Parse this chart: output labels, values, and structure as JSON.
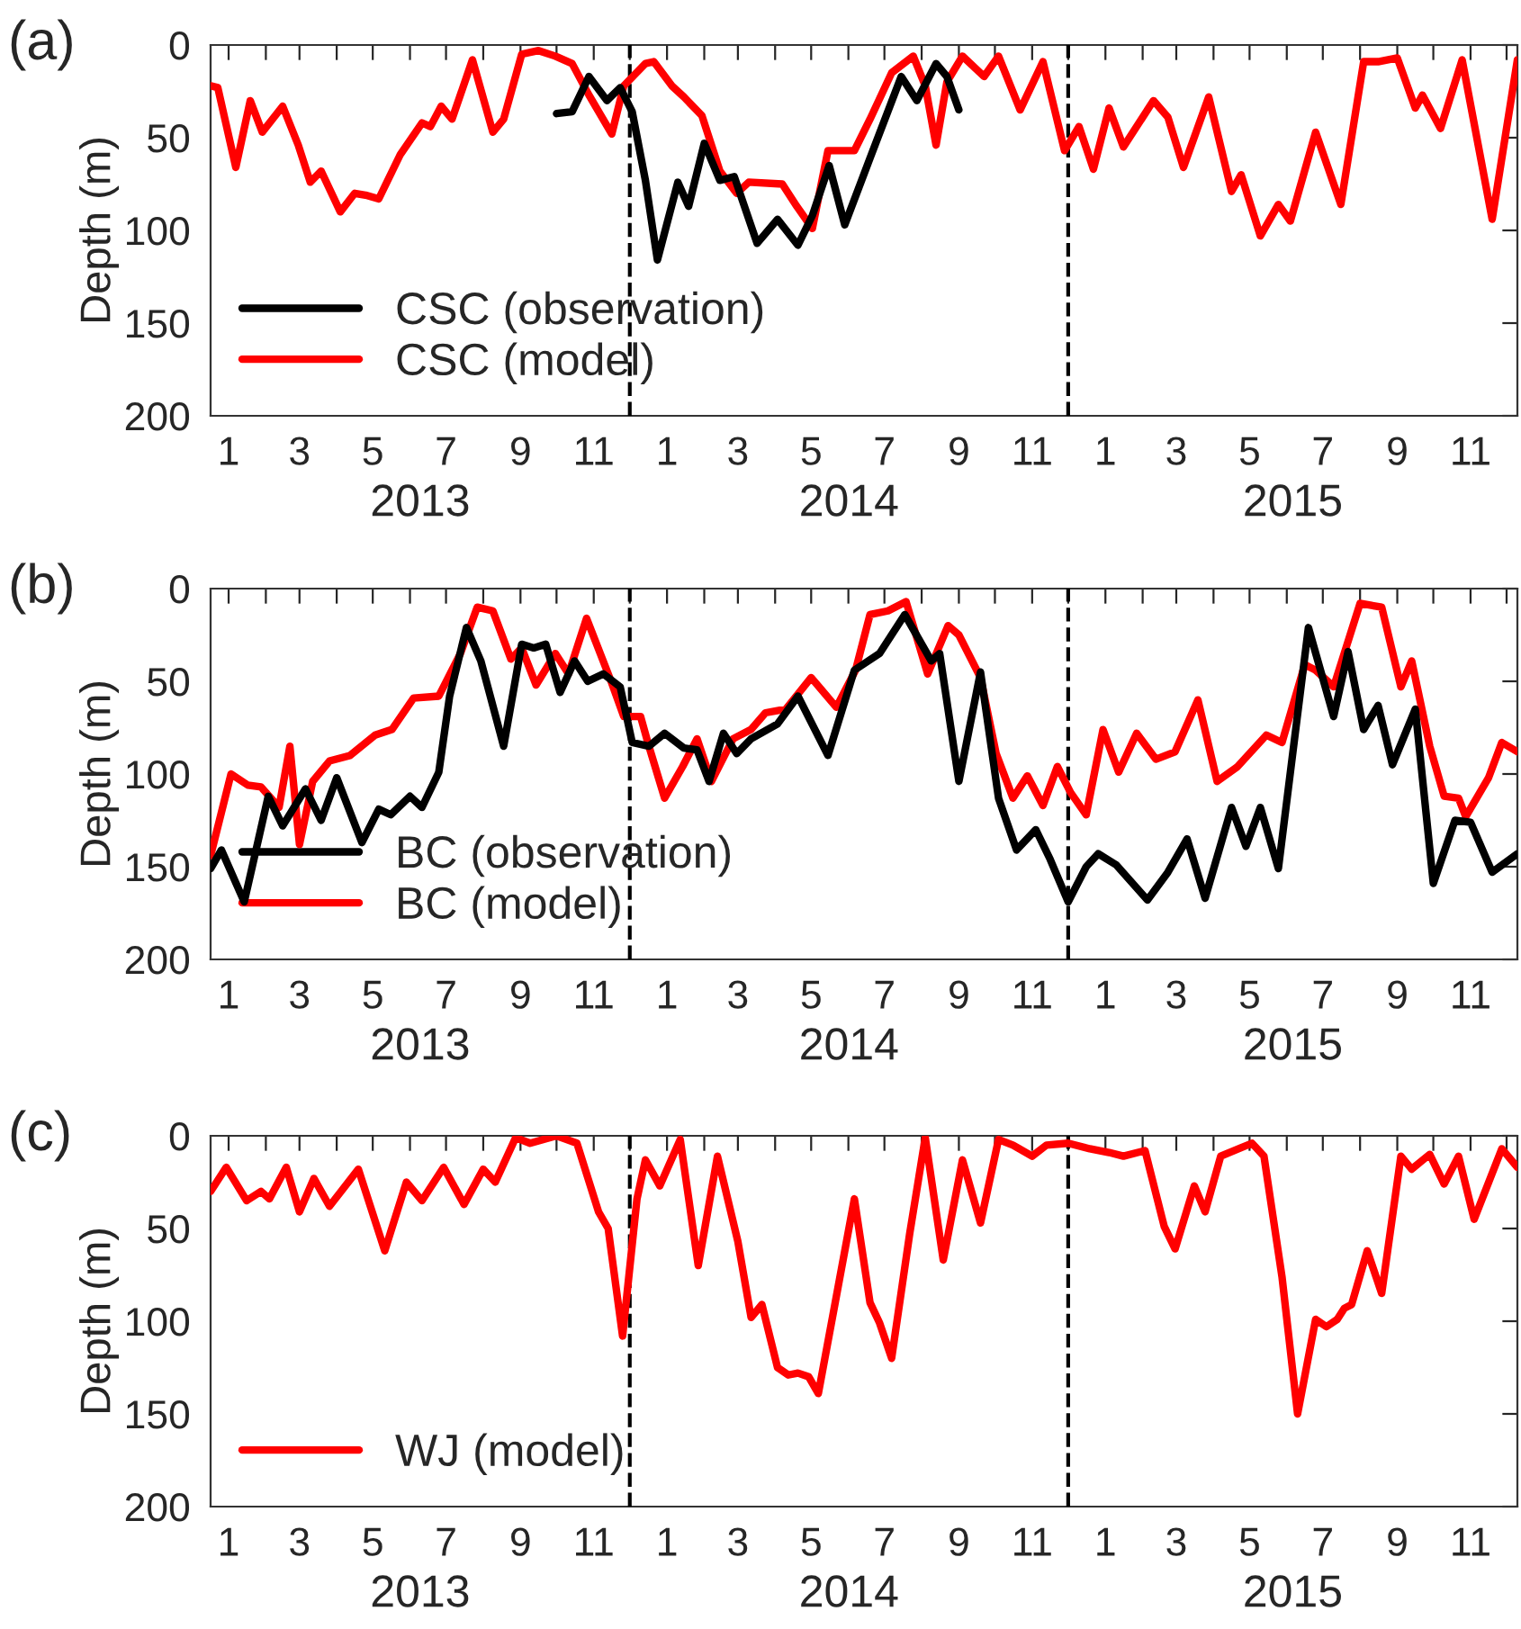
{
  "chart_data": [
    {
      "type": "line",
      "title": "(a)",
      "ylabel": "Depth (m)",
      "xlim": [
        "2012-12-17",
        "2015-12-10"
      ],
      "ylim": [
        200,
        0
      ],
      "yticks": [
        0,
        50,
        100,
        150,
        200
      ],
      "xticks": [
        {
          "value": "2013-01",
          "label": "1"
        },
        {
          "value": "2013-02",
          "label": null
        },
        {
          "value": "2013-03",
          "label": "3"
        },
        {
          "value": "2013-04",
          "label": null
        },
        {
          "value": "2013-05",
          "label": "5"
        },
        {
          "value": "2013-06",
          "label": null
        },
        {
          "value": "2013-07",
          "label": "7"
        },
        {
          "value": "2013-08",
          "label": null
        },
        {
          "value": "2013-09",
          "label": "9"
        },
        {
          "value": "2013-10",
          "label": null
        },
        {
          "value": "2013-11",
          "label": "11"
        },
        {
          "value": "2013-12",
          "label": null
        },
        {
          "value": "2014-01",
          "label": "1"
        },
        {
          "value": "2014-02",
          "label": null
        },
        {
          "value": "2014-03",
          "label": "3"
        },
        {
          "value": "2014-04",
          "label": null
        },
        {
          "value": "2014-05",
          "label": "5"
        },
        {
          "value": "2014-06",
          "label": null
        },
        {
          "value": "2014-07",
          "label": "7"
        },
        {
          "value": "2014-08",
          "label": null
        },
        {
          "value": "2014-09",
          "label": "9"
        },
        {
          "value": "2014-10",
          "label": null
        },
        {
          "value": "2014-11",
          "label": "11"
        },
        {
          "value": "2014-12",
          "label": null
        },
        {
          "value": "2015-01",
          "label": "1"
        },
        {
          "value": "2015-02",
          "label": null
        },
        {
          "value": "2015-03",
          "label": "3"
        },
        {
          "value": "2015-04",
          "label": null
        },
        {
          "value": "2015-05",
          "label": "5"
        },
        {
          "value": "2015-06",
          "label": null
        },
        {
          "value": "2015-07",
          "label": "7"
        },
        {
          "value": "2015-08",
          "label": null
        },
        {
          "value": "2015-09",
          "label": "9"
        },
        {
          "value": "2015-10",
          "label": null
        },
        {
          "value": "2015-11",
          "label": "11"
        },
        {
          "value": "2015-12",
          "label": null
        }
      ],
      "annotations": [
        "2013",
        "2014",
        "2015"
      ],
      "ref_lines": [
        {
          "axis": "x",
          "value": "2013-12-01",
          "line_style": "dashed",
          "color": "#000000"
        },
        {
          "axis": "x",
          "value": "2014-12-01",
          "line_style": "dashed",
          "color": "#000000"
        }
      ],
      "legend": "bottom left",
      "grid": false,
      "line_style": "solid",
      "marker": "none",
      "series": [
        {
          "name": "CSC (observation)",
          "color": "#000000",
          "x": [
            "2013-10-01",
            "2013-10-14",
            "2013-10-28",
            "2013-11-12",
            "2013-11-23",
            "2013-12-03",
            "2013-12-14",
            "2013-12-24",
            "2014-01-10",
            "2014-01-19",
            "2014-02-01",
            "2014-02-14",
            "2014-02-26",
            "2014-03-17",
            "2014-04-03",
            "2014-04-20",
            "2014-05-02",
            "2014-05-16",
            "2014-05-29",
            "2014-06-19",
            "2014-07-15",
            "2014-07-28",
            "2014-08-13",
            "2014-08-22",
            "2014-09-01"
          ],
          "values": [
            37,
            36,
            17,
            30,
            23,
            36,
            73,
            116,
            74,
            87,
            53,
            73,
            71,
            107,
            94,
            108,
            92,
            65,
            97,
            61,
            17,
            30,
            10,
            17,
            35
          ]
        },
        {
          "name": "CSC (model)",
          "color": "#ff0000",
          "x": [
            "2012-12-17",
            "2012-12-23",
            "2013-01-07",
            "2013-01-19",
            "2013-01-29",
            "2013-02-15",
            "2013-02-28",
            "2013-03-10",
            "2013-03-19",
            "2013-04-04",
            "2013-04-16",
            "2013-04-25",
            "2013-05-06",
            "2013-05-24",
            "2013-06-11",
            "2013-06-18",
            "2013-06-27",
            "2013-07-06",
            "2013-07-23",
            "2013-08-09",
            "2013-08-18",
            "2013-09-02",
            "2013-09-16",
            "2013-09-30",
            "2013-10-14",
            "2013-10-28",
            "2013-11-16",
            "2013-11-26",
            "2013-12-14",
            "2013-12-21",
            "2014-01-05",
            "2014-01-15",
            "2014-01-30",
            "2014-02-14",
            "2014-02-28",
            "2014-03-10",
            "2014-04-07",
            "2014-04-19",
            "2014-05-02",
            "2014-05-15",
            "2014-06-06",
            "2014-06-19",
            "2014-07-07",
            "2014-07-25",
            "2014-08-04",
            "2014-08-13",
            "2014-08-22",
            "2014-09-04",
            "2014-09-22",
            "2014-10-04",
            "2014-10-22",
            "2014-11-10",
            "2014-11-28",
            "2014-12-10",
            "2014-12-22",
            "2015-01-04",
            "2015-01-16",
            "2015-02-10",
            "2015-02-22",
            "2015-03-07",
            "2015-03-28",
            "2015-04-16",
            "2015-04-24",
            "2015-05-10",
            "2015-05-25",
            "2015-06-04",
            "2015-06-25",
            "2015-07-16",
            "2015-08-04",
            "2015-08-16",
            "2015-09-01",
            "2015-09-16",
            "2015-09-22",
            "2015-10-07",
            "2015-10-25",
            "2015-11-19",
            "2015-12-10"
          ],
          "values": [
            22,
            23,
            66,
            30,
            47,
            33,
            54,
            74,
            68,
            90,
            80,
            81,
            83,
            59,
            42,
            44,
            33,
            40,
            8,
            47,
            40,
            5,
            3,
            6,
            10,
            27,
            48,
            22,
            10,
            9,
            22,
            28,
            38,
            68,
            80,
            74,
            75,
            87,
            99,
            57,
            57,
            40,
            15,
            6,
            22,
            54,
            20,
            6,
            17,
            6,
            35,
            9,
            57,
            44,
            67,
            34,
            55,
            30,
            39,
            66,
            28,
            79,
            70,
            103,
            86,
            95,
            47,
            86,
            9,
            9,
            7,
            34,
            27,
            45,
            8,
            94,
            8
          ]
        }
      ]
    },
    {
      "type": "line",
      "title": "(b)",
      "ylabel": "Depth (m)",
      "xlim": [
        "2012-12-17",
        "2015-12-10"
      ],
      "ylim": [
        200,
        0
      ],
      "yticks": [
        0,
        50,
        100,
        150,
        200
      ],
      "xticks": [
        {
          "value": "2013-01",
          "label": "1"
        },
        {
          "value": "2013-02",
          "label": null
        },
        {
          "value": "2013-03",
          "label": "3"
        },
        {
          "value": "2013-04",
          "label": null
        },
        {
          "value": "2013-05",
          "label": "5"
        },
        {
          "value": "2013-06",
          "label": null
        },
        {
          "value": "2013-07",
          "label": "7"
        },
        {
          "value": "2013-08",
          "label": null
        },
        {
          "value": "2013-09",
          "label": "9"
        },
        {
          "value": "2013-10",
          "label": null
        },
        {
          "value": "2013-11",
          "label": "11"
        },
        {
          "value": "2013-12",
          "label": null
        },
        {
          "value": "2014-01",
          "label": "1"
        },
        {
          "value": "2014-02",
          "label": null
        },
        {
          "value": "2014-03",
          "label": "3"
        },
        {
          "value": "2014-04",
          "label": null
        },
        {
          "value": "2014-05",
          "label": "5"
        },
        {
          "value": "2014-06",
          "label": null
        },
        {
          "value": "2014-07",
          "label": "7"
        },
        {
          "value": "2014-08",
          "label": null
        },
        {
          "value": "2014-09",
          "label": "9"
        },
        {
          "value": "2014-10",
          "label": null
        },
        {
          "value": "2014-11",
          "label": "11"
        },
        {
          "value": "2014-12",
          "label": null
        },
        {
          "value": "2015-01",
          "label": "1"
        },
        {
          "value": "2015-02",
          "label": null
        },
        {
          "value": "2015-03",
          "label": "3"
        },
        {
          "value": "2015-04",
          "label": null
        },
        {
          "value": "2015-05",
          "label": "5"
        },
        {
          "value": "2015-06",
          "label": null
        },
        {
          "value": "2015-07",
          "label": "7"
        },
        {
          "value": "2015-08",
          "label": null
        },
        {
          "value": "2015-09",
          "label": "9"
        },
        {
          "value": "2015-10",
          "label": null
        },
        {
          "value": "2015-11",
          "label": "11"
        },
        {
          "value": "2015-12",
          "label": null
        }
      ],
      "annotations": [
        "2013",
        "2014",
        "2015"
      ],
      "ref_lines": [
        {
          "axis": "x",
          "value": "2013-12-01",
          "line_style": "dashed",
          "color": "#000000"
        },
        {
          "axis": "x",
          "value": "2014-12-01",
          "line_style": "dashed",
          "color": "#000000"
        }
      ],
      "legend": "bottom left",
      "grid": false,
      "line_style": "solid",
      "marker": "none",
      "series": [
        {
          "name": "BC (observation)",
          "color": "#000000",
          "x": [
            "2012-12-17",
            "2012-12-26",
            "2013-01-14",
            "2013-02-03",
            "2013-02-15",
            "2013-03-06",
            "2013-03-19",
            "2013-04-01",
            "2013-04-22",
            "2013-05-06",
            "2013-05-16",
            "2013-06-01",
            "2013-06-11",
            "2013-06-25",
            "2013-07-04",
            "2013-07-18",
            "2013-07-30",
            "2013-08-18",
            "2013-09-02",
            "2013-09-12",
            "2013-09-22",
            "2013-10-04",
            "2013-10-16",
            "2013-10-27",
            "2013-11-09",
            "2013-11-23",
            "2013-12-03",
            "2013-12-17",
            "2013-12-30",
            "2014-01-15",
            "2014-01-26",
            "2014-02-05",
            "2014-02-17",
            "2014-02-28",
            "2014-03-12",
            "2014-04-03",
            "2014-04-20",
            "2014-05-15",
            "2014-06-06",
            "2014-06-27",
            "2014-07-18",
            "2014-08-09",
            "2014-08-16",
            "2014-09-01",
            "2014-09-19",
            "2014-10-04",
            "2014-10-19",
            "2014-11-04",
            "2014-11-16",
            "2014-12-01",
            "2014-12-16",
            "2014-12-26",
            "2015-01-10",
            "2015-02-05",
            "2015-02-22",
            "2015-03-10",
            "2015-03-25",
            "2015-04-16",
            "2015-04-28",
            "2015-05-10",
            "2015-05-25",
            "2015-06-19",
            "2015-07-10",
            "2015-07-22",
            "2015-08-04",
            "2015-08-16",
            "2015-08-28",
            "2015-09-16",
            "2015-10-01",
            "2015-10-19",
            "2015-11-01",
            "2015-11-19",
            "2015-12-10"
          ],
          "values": [
            151,
            141,
            169,
            112,
            128,
            108,
            125,
            102,
            137,
            119,
            122,
            112,
            118,
            99,
            58,
            21,
            39,
            85,
            30,
            32,
            30,
            56,
            39,
            50,
            46,
            53,
            83,
            85,
            78,
            86,
            87,
            104,
            78,
            89,
            81,
            73,
            58,
            90,
            44,
            35,
            14,
            39,
            35,
            104,
            45,
            113,
            141,
            130,
            146,
            169,
            150,
            143,
            149,
            168,
            153,
            135,
            167,
            118,
            139,
            118,
            151,
            21,
            69,
            34,
            76,
            63,
            95,
            65,
            159,
            125,
            126,
            153,
            143
          ]
        },
        {
          "name": "BC (model)",
          "color": "#ff0000",
          "x": [
            "2012-12-17",
            "2013-01-03",
            "2013-01-17",
            "2013-01-28",
            "2013-02-12",
            "2013-02-21",
            "2013-03-01",
            "2013-03-12",
            "2013-03-26",
            "2013-04-12",
            "2013-05-03",
            "2013-05-17",
            "2013-06-04",
            "2013-06-25",
            "2013-07-13",
            "2013-07-27",
            "2013-08-09",
            "2013-08-24",
            "2013-09-02",
            "2013-09-14",
            "2013-09-30",
            "2013-10-11",
            "2013-10-26",
            "2013-11-16",
            "2013-11-26",
            "2013-12-10",
            "2013-12-16",
            "2013-12-30",
            "2014-01-14",
            "2014-01-26",
            "2014-02-07",
            "2014-02-25",
            "2014-03-12",
            "2014-03-24",
            "2014-04-10",
            "2014-05-01",
            "2014-05-22",
            "2014-06-07",
            "2014-06-19",
            "2014-07-04",
            "2014-07-19",
            "2014-08-06",
            "2014-08-23",
            "2014-09-01",
            "2014-09-19",
            "2014-10-02",
            "2014-10-16",
            "2014-10-28",
            "2014-11-10",
            "2014-11-22",
            "2014-12-03",
            "2014-12-16",
            "2014-12-30",
            "2015-01-12",
            "2015-01-27",
            "2015-02-12",
            "2015-02-28",
            "2015-03-19",
            "2015-04-04",
            "2015-04-21",
            "2015-05-15",
            "2015-05-28",
            "2015-06-16",
            "2015-06-25",
            "2015-07-10",
            "2015-08-01",
            "2015-08-19",
            "2015-09-04",
            "2015-09-13",
            "2015-09-28",
            "2015-10-10",
            "2015-10-22",
            "2015-10-28",
            "2015-11-16",
            "2015-11-27",
            "2015-12-10"
          ],
          "values": [
            144,
            100,
            106,
            107,
            118,
            85,
            138,
            104,
            93,
            90,
            79,
            76,
            59,
            58,
            35,
            10,
            12,
            38,
            32,
            52,
            35,
            46,
            16,
            51,
            69,
            69,
            83,
            113,
            96,
            81,
            104,
            81,
            76,
            67,
            65,
            48,
            64,
            44,
            14,
            12,
            7,
            46,
            20,
            25,
            48,
            89,
            113,
            101,
            117,
            96,
            110,
            122,
            76,
            99,
            78,
            92,
            88,
            60,
            104,
            96,
            79,
            83,
            41,
            44,
            53,
            8,
            10,
            53,
            39,
            85,
            112,
            113,
            123,
            102,
            83,
            88
          ]
        }
      ]
    },
    {
      "type": "line",
      "title": "(c)",
      "ylabel": "Depth (m)",
      "xlim": [
        "2012-12-17",
        "2015-12-10"
      ],
      "ylim": [
        200,
        0
      ],
      "yticks": [
        0,
        50,
        100,
        150,
        200
      ],
      "xticks": [
        {
          "value": "2013-01",
          "label": "1"
        },
        {
          "value": "2013-02",
          "label": null
        },
        {
          "value": "2013-03",
          "label": "3"
        },
        {
          "value": "2013-04",
          "label": null
        },
        {
          "value": "2013-05",
          "label": "5"
        },
        {
          "value": "2013-06",
          "label": null
        },
        {
          "value": "2013-07",
          "label": "7"
        },
        {
          "value": "2013-08",
          "label": null
        },
        {
          "value": "2013-09",
          "label": "9"
        },
        {
          "value": "2013-10",
          "label": null
        },
        {
          "value": "2013-11",
          "label": "11"
        },
        {
          "value": "2013-12",
          "label": null
        },
        {
          "value": "2014-01",
          "label": "1"
        },
        {
          "value": "2014-02",
          "label": null
        },
        {
          "value": "2014-03",
          "label": "3"
        },
        {
          "value": "2014-04",
          "label": null
        },
        {
          "value": "2014-05",
          "label": "5"
        },
        {
          "value": "2014-06",
          "label": null
        },
        {
          "value": "2014-07",
          "label": "7"
        },
        {
          "value": "2014-08",
          "label": null
        },
        {
          "value": "2014-09",
          "label": "9"
        },
        {
          "value": "2014-10",
          "label": null
        },
        {
          "value": "2014-11",
          "label": "11"
        },
        {
          "value": "2014-12",
          "label": null
        },
        {
          "value": "2015-01",
          "label": "1"
        },
        {
          "value": "2015-02",
          "label": null
        },
        {
          "value": "2015-03",
          "label": "3"
        },
        {
          "value": "2015-04",
          "label": null
        },
        {
          "value": "2015-05",
          "label": "5"
        },
        {
          "value": "2015-06",
          "label": null
        },
        {
          "value": "2015-07",
          "label": "7"
        },
        {
          "value": "2015-08",
          "label": null
        },
        {
          "value": "2015-09",
          "label": "9"
        },
        {
          "value": "2015-10",
          "label": null
        },
        {
          "value": "2015-11",
          "label": "11"
        },
        {
          "value": "2015-12",
          "label": null
        }
      ],
      "annotations": [
        "2013",
        "2014",
        "2015"
      ],
      "ref_lines": [
        {
          "axis": "x",
          "value": "2013-12-01",
          "line_style": "dashed",
          "color": "#000000"
        },
        {
          "axis": "x",
          "value": "2014-12-01",
          "line_style": "dashed",
          "color": "#000000"
        }
      ],
      "legend": "bottom left",
      "grid": false,
      "line_style": "solid",
      "marker": "none",
      "series": [
        {
          "name": "WJ (model)",
          "color": "#ff0000",
          "x": [
            "2012-12-17",
            "2012-12-30",
            "2013-01-16",
            "2013-01-28",
            "2013-02-04",
            "2013-02-18",
            "2013-03-01",
            "2013-03-13",
            "2013-03-26",
            "2013-04-19",
            "2013-05-11",
            "2013-05-29",
            "2013-06-11",
            "2013-06-29",
            "2013-07-16",
            "2013-08-01",
            "2013-08-11",
            "2013-08-28",
            "2013-09-09",
            "2013-10-01",
            "2013-10-18",
            "2013-11-05",
            "2013-11-13",
            "2013-11-25",
            "2013-12-07",
            "2013-12-14",
            "2013-12-26",
            "2014-01-12",
            "2014-01-27",
            "2014-02-12",
            "2014-03-01",
            "2014-03-12",
            "2014-03-21",
            "2014-04-03",
            "2014-04-12",
            "2014-04-20",
            "2014-04-29",
            "2014-05-07",
            "2014-05-21",
            "2014-06-06",
            "2014-06-19",
            "2014-06-27",
            "2014-07-07",
            "2014-07-22",
            "2014-08-04",
            "2014-08-19",
            "2014-09-04",
            "2014-09-19",
            "2014-10-04",
            "2014-10-16",
            "2014-11-01",
            "2014-11-13",
            "2014-12-01",
            "2014-12-19",
            "2015-01-04",
            "2015-01-16",
            "2015-02-03",
            "2015-02-19",
            "2015-02-28",
            "2015-03-16",
            "2015-03-25",
            "2015-04-07",
            "2015-05-03",
            "2015-05-13",
            "2015-05-28",
            "2015-06-10",
            "2015-06-25",
            "2015-07-04",
            "2015-07-13",
            "2015-07-19",
            "2015-07-25",
            "2015-08-07",
            "2015-08-19",
            "2015-09-04",
            "2015-09-13",
            "2015-09-28",
            "2015-10-10",
            "2015-10-22",
            "2015-11-04",
            "2015-11-27",
            "2015-12-10"
          ],
          "values": [
            30,
            17,
            35,
            30,
            34,
            17,
            41,
            23,
            38,
            18,
            62,
            25,
            35,
            17,
            37,
            18,
            25,
            1,
            4,
            0,
            4,
            41,
            50,
            108,
            34,
            13,
            27,
            2,
            70,
            11,
            57,
            98,
            91,
            125,
            129,
            128,
            130,
            139,
            90,
            34,
            90,
            101,
            120,
            53,
            1,
            67,
            13,
            47,
            2,
            5,
            11,
            5,
            4,
            7,
            9,
            11,
            8,
            49,
            61,
            27,
            41,
            11,
            4,
            11,
            76,
            150,
            99,
            103,
            99,
            93,
            91,
            62,
            85,
            11,
            18,
            10,
            26,
            11,
            45,
            7,
            17
          ]
        }
      ]
    }
  ]
}
